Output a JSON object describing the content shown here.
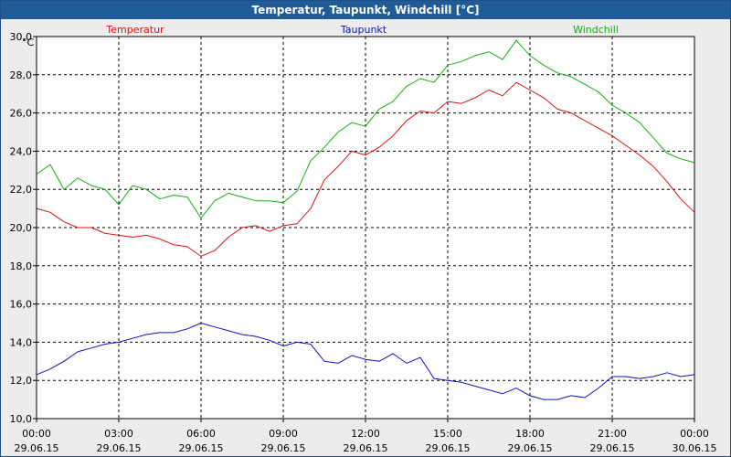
{
  "window": {
    "title": "Temperatur, Taupunkt, Windchill [°C]"
  },
  "colors": {
    "temperatur": "#e01010",
    "taupunkt": "#1010c8",
    "windchill": "#10b010",
    "grid": "#000000",
    "plot_bg": "#ffffff"
  },
  "chart_data": {
    "type": "line",
    "title": "Temperatur, Taupunkt, Windchill [°C]",
    "ylabel": "°C",
    "ylim": [
      10,
      30
    ],
    "grid": true,
    "legend": "top",
    "y_ticks": [
      "10,0",
      "12,0",
      "14,0",
      "16,0",
      "18,0",
      "20,0",
      "22,0",
      "24,0",
      "26,0",
      "28,0",
      "30,0"
    ],
    "x_ticks": [
      {
        "time": "00:00",
        "date": "29.06.15"
      },
      {
        "time": "03:00",
        "date": "29.06.15"
      },
      {
        "time": "06:00",
        "date": "29.06.15"
      },
      {
        "time": "09:00",
        "date": "29.06.15"
      },
      {
        "time": "12:00",
        "date": "29.06.15"
      },
      {
        "time": "15:00",
        "date": "29.06.15"
      },
      {
        "time": "18:00",
        "date": "29.06.15"
      },
      {
        "time": "21:00",
        "date": "29.06.15"
      },
      {
        "time": "00:00",
        "date": "30.06.15"
      }
    ],
    "series": [
      {
        "name": "Temperatur",
        "color": "#e01010",
        "x": [
          "29.06.15 00:00",
          "29.06.15 00:30",
          "29.06.15 01:00",
          "29.06.15 01:30",
          "29.06.15 02:00",
          "29.06.15 02:30",
          "29.06.15 03:00",
          "29.06.15 03:30",
          "29.06.15 04:00",
          "29.06.15 04:30",
          "29.06.15 05:00",
          "29.06.15 05:30",
          "29.06.15 06:00",
          "29.06.15 06:30",
          "29.06.15 07:00",
          "29.06.15 07:30",
          "29.06.15 08:00",
          "29.06.15 08:30",
          "29.06.15 09:00",
          "29.06.15 09:30",
          "29.06.15 10:00",
          "29.06.15 10:30",
          "29.06.15 11:00",
          "29.06.15 11:30",
          "29.06.15 12:00",
          "29.06.15 12:30",
          "29.06.15 13:00",
          "29.06.15 13:30",
          "29.06.15 14:00",
          "29.06.15 14:30",
          "29.06.15 15:00",
          "29.06.15 15:30",
          "29.06.15 16:00",
          "29.06.15 16:30",
          "29.06.15 17:00",
          "29.06.15 17:30",
          "29.06.15 18:00",
          "29.06.15 18:30",
          "29.06.15 19:00",
          "29.06.15 19:30",
          "29.06.15 20:00",
          "29.06.15 20:30",
          "29.06.15 21:00",
          "29.06.15 21:30",
          "29.06.15 22:00",
          "29.06.15 22:30",
          "29.06.15 23:00",
          "29.06.15 23:30",
          "30.06.15 00:00"
        ],
        "values": [
          21.0,
          20.8,
          20.3,
          20.0,
          20.0,
          19.7,
          19.6,
          19.5,
          19.6,
          19.4,
          19.1,
          19.0,
          18.5,
          18.8,
          19.5,
          20.0,
          20.1,
          19.8,
          20.1,
          20.2,
          21.0,
          22.5,
          23.2,
          24.0,
          23.8,
          24.2,
          24.8,
          25.6,
          26.1,
          26.0,
          26.6,
          26.5,
          26.8,
          27.2,
          26.9,
          27.6,
          27.2,
          26.8,
          26.2,
          26.0,
          25.6,
          25.2,
          24.8,
          24.3,
          23.8,
          23.2,
          22.4,
          21.5,
          20.8
        ]
      },
      {
        "name": "Taupunkt",
        "color": "#1010c8",
        "x": [
          "29.06.15 00:00",
          "29.06.15 00:30",
          "29.06.15 01:00",
          "29.06.15 01:30",
          "29.06.15 02:00",
          "29.06.15 02:30",
          "29.06.15 03:00",
          "29.06.15 03:30",
          "29.06.15 04:00",
          "29.06.15 04:30",
          "29.06.15 05:00",
          "29.06.15 05:30",
          "29.06.15 06:00",
          "29.06.15 06:30",
          "29.06.15 07:00",
          "29.06.15 07:30",
          "29.06.15 08:00",
          "29.06.15 08:30",
          "29.06.15 09:00",
          "29.06.15 09:30",
          "29.06.15 10:00",
          "29.06.15 10:30",
          "29.06.15 11:00",
          "29.06.15 11:30",
          "29.06.15 12:00",
          "29.06.15 12:30",
          "29.06.15 13:00",
          "29.06.15 13:30",
          "29.06.15 14:00",
          "29.06.15 14:30",
          "29.06.15 15:00",
          "29.06.15 15:30",
          "29.06.15 16:00",
          "29.06.15 16:30",
          "29.06.15 17:00",
          "29.06.15 17:30",
          "29.06.15 18:00",
          "29.06.15 18:30",
          "29.06.15 19:00",
          "29.06.15 19:30",
          "29.06.15 20:00",
          "29.06.15 20:30",
          "29.06.15 21:00",
          "29.06.15 21:30",
          "29.06.15 22:00",
          "29.06.15 22:30",
          "29.06.15 23:00",
          "29.06.15 23:30",
          "30.06.15 00:00"
        ],
        "values": [
          12.3,
          12.6,
          13.0,
          13.5,
          13.7,
          13.9,
          14.0,
          14.2,
          14.4,
          14.5,
          14.5,
          14.7,
          15.0,
          14.8,
          14.6,
          14.4,
          14.3,
          14.1,
          13.8,
          14.0,
          13.9,
          13.0,
          12.9,
          13.3,
          13.1,
          13.0,
          13.4,
          12.9,
          13.2,
          12.1,
          12.0,
          11.9,
          11.7,
          11.5,
          11.3,
          11.6,
          11.2,
          11.0,
          11.0,
          11.2,
          11.1,
          11.6,
          12.2,
          12.2,
          12.1,
          12.2,
          12.4,
          12.2,
          12.3
        ]
      },
      {
        "name": "Windchill",
        "color": "#10b010",
        "x": [
          "29.06.15 00:00",
          "29.06.15 00:30",
          "29.06.15 01:00",
          "29.06.15 01:30",
          "29.06.15 02:00",
          "29.06.15 02:30",
          "29.06.15 03:00",
          "29.06.15 03:30",
          "29.06.15 04:00",
          "29.06.15 04:30",
          "29.06.15 05:00",
          "29.06.15 05:30",
          "29.06.15 06:00",
          "29.06.15 06:30",
          "29.06.15 07:00",
          "29.06.15 07:30",
          "29.06.15 08:00",
          "29.06.15 08:30",
          "29.06.15 09:00",
          "29.06.15 09:30",
          "29.06.15 10:00",
          "29.06.15 10:30",
          "29.06.15 11:00",
          "29.06.15 11:30",
          "29.06.15 12:00",
          "29.06.15 12:30",
          "29.06.15 13:00",
          "29.06.15 13:30",
          "29.06.15 14:00",
          "29.06.15 14:30",
          "29.06.15 15:00",
          "29.06.15 15:30",
          "29.06.15 16:00",
          "29.06.15 16:30",
          "29.06.15 17:00",
          "29.06.15 17:30",
          "29.06.15 18:00",
          "29.06.15 18:30",
          "29.06.15 19:00",
          "29.06.15 19:30",
          "29.06.15 20:00",
          "29.06.15 20:30",
          "29.06.15 21:00",
          "29.06.15 21:30",
          "29.06.15 22:00",
          "29.06.15 22:30",
          "29.06.15 23:00",
          "29.06.15 23:30",
          "30.06.15 00:00"
        ],
        "values": [
          22.8,
          23.3,
          22.0,
          22.6,
          22.2,
          22.0,
          21.2,
          22.2,
          22.0,
          21.5,
          21.7,
          21.6,
          20.5,
          21.4,
          21.8,
          21.6,
          21.4,
          21.4,
          21.3,
          21.9,
          23.5,
          24.2,
          25.0,
          25.5,
          25.3,
          26.2,
          26.6,
          27.4,
          27.8,
          27.6,
          28.5,
          28.7,
          29.0,
          29.2,
          28.8,
          29.8,
          29.0,
          28.5,
          28.1,
          27.9,
          27.5,
          27.1,
          26.4,
          26.0,
          25.5,
          24.7,
          23.9,
          23.6,
          23.4
        ]
      }
    ]
  }
}
